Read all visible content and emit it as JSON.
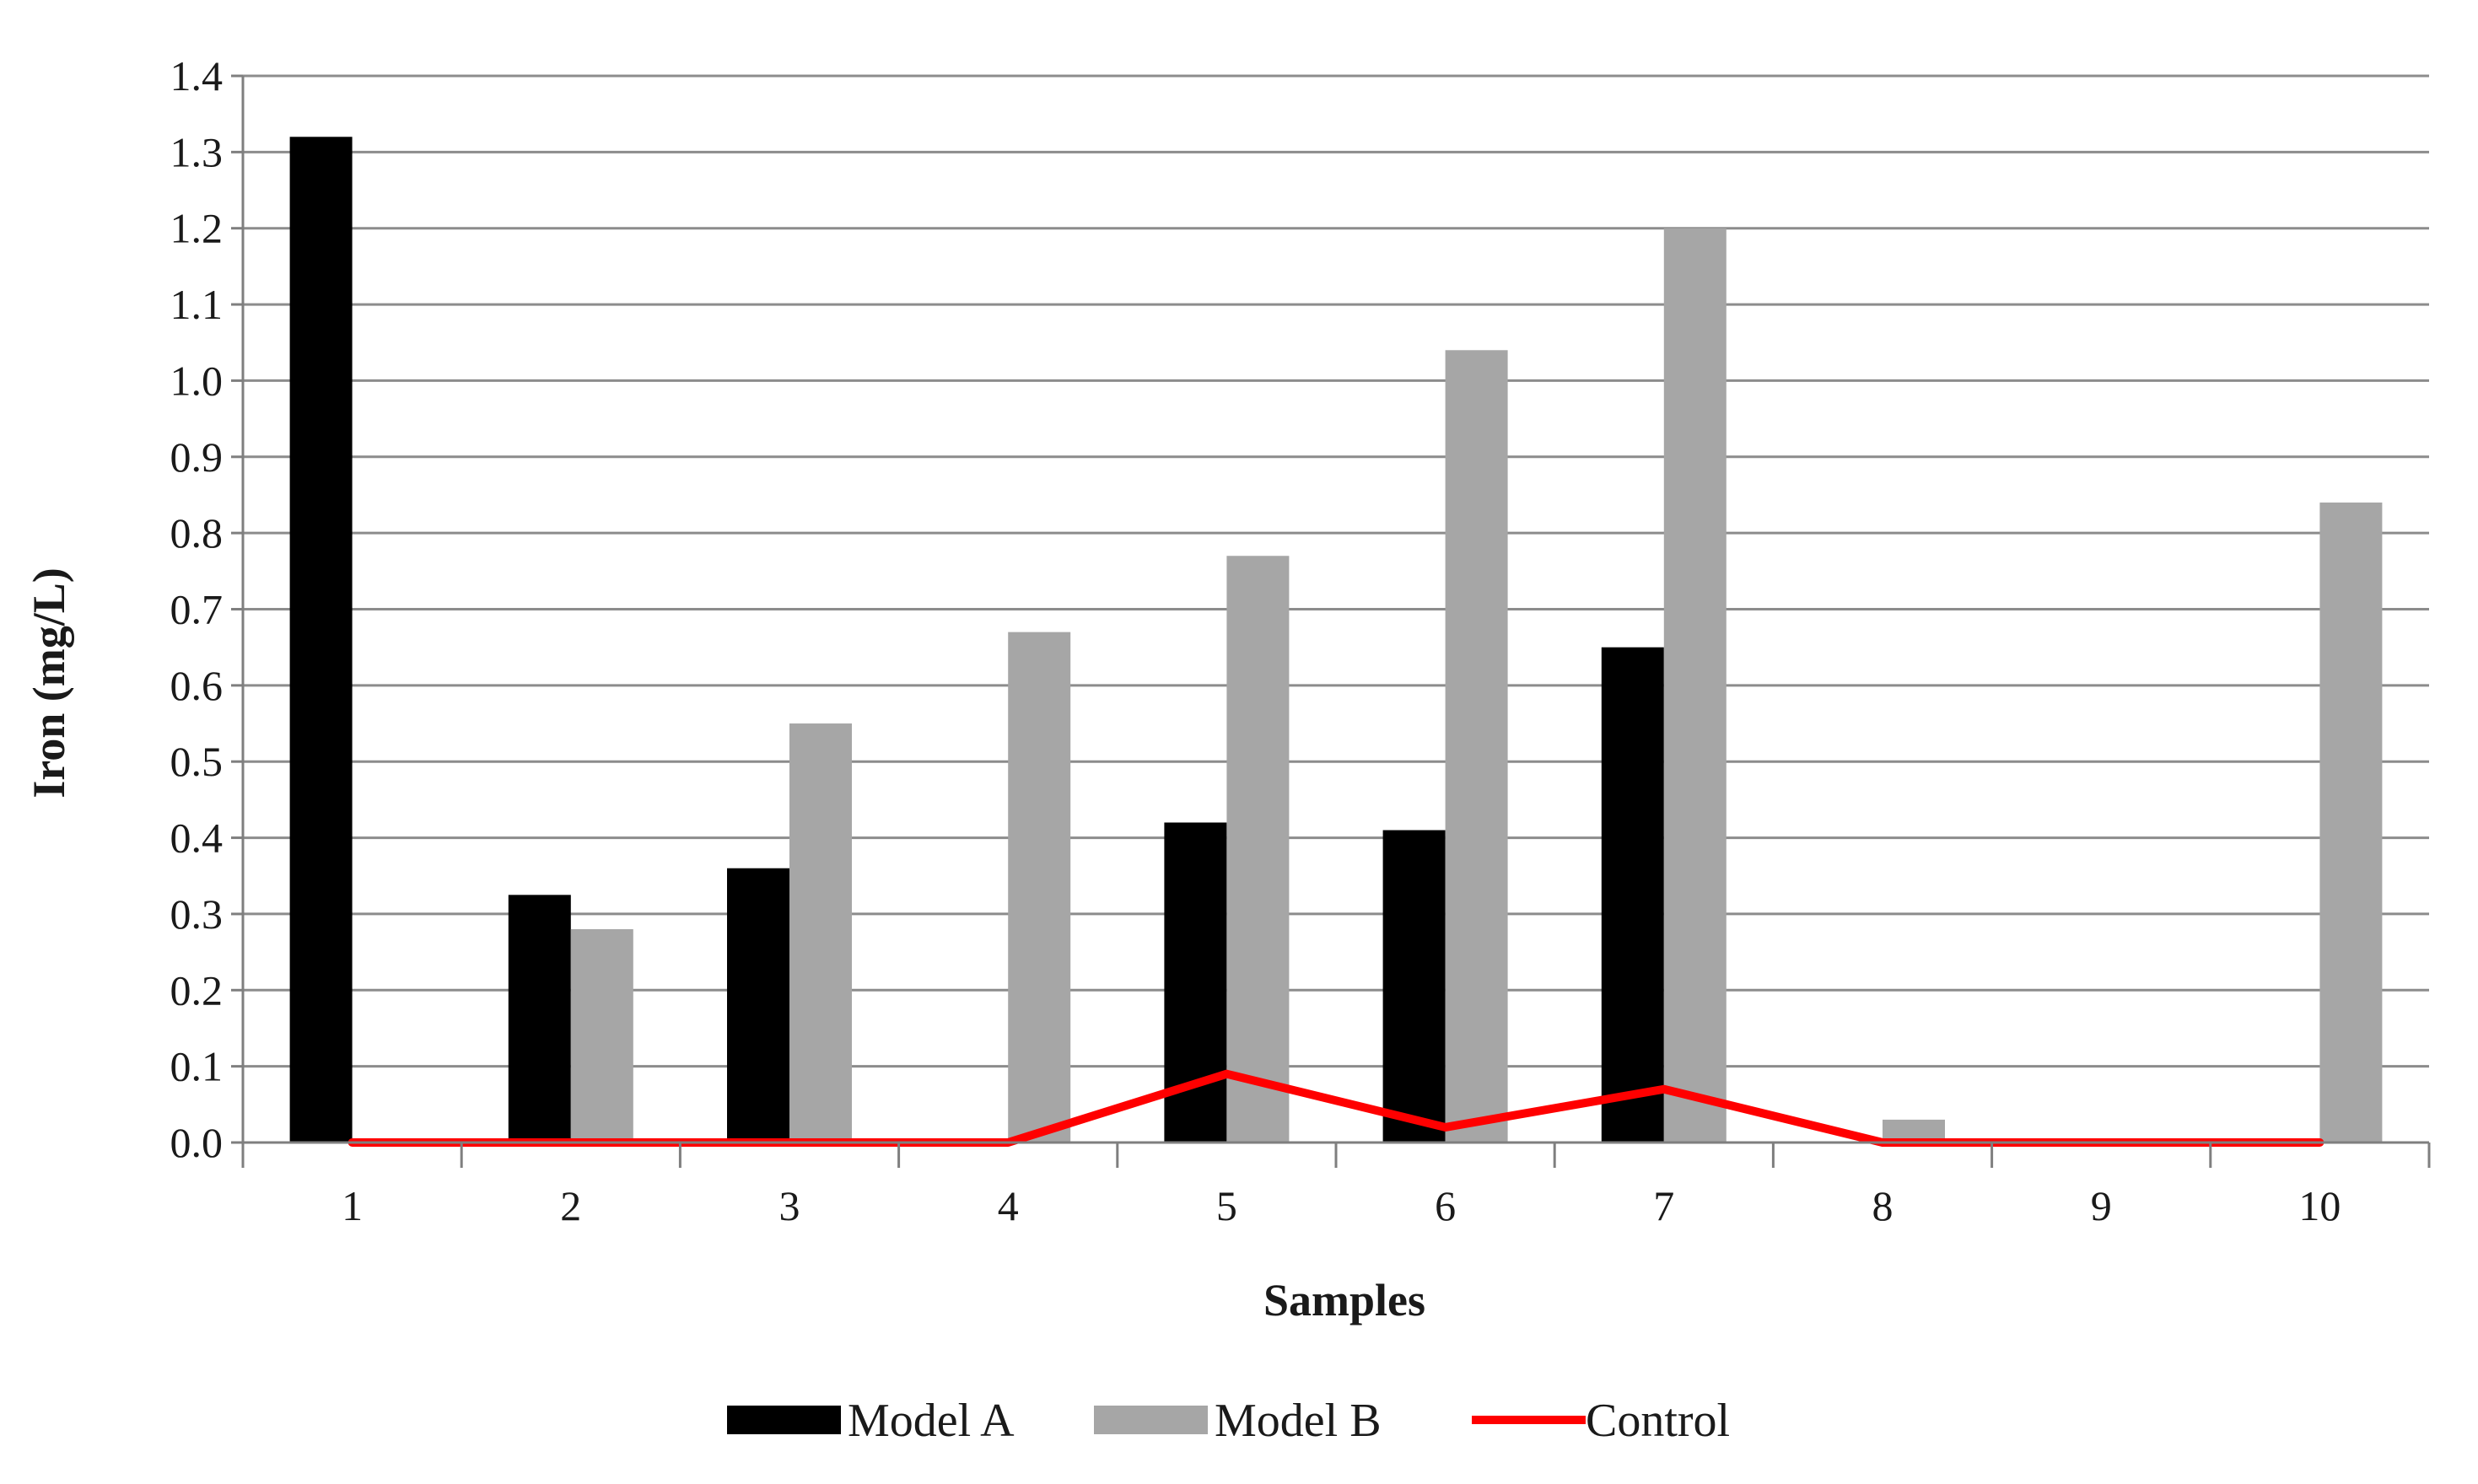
{
  "chart_data": {
    "type": "bar",
    "categories": [
      "1",
      "2",
      "3",
      "4",
      "5",
      "6",
      "7",
      "8",
      "9",
      "10"
    ],
    "series": [
      {
        "name": "Model A",
        "kind": "bar",
        "color": "#000000",
        "values": [
          1.32,
          0.325,
          0.36,
          0,
          0.42,
          0.41,
          0.65,
          0,
          0,
          0
        ]
      },
      {
        "name": "Model B",
        "kind": "bar",
        "color": "#a6a6a6",
        "values": [
          0,
          0.28,
          0.55,
          0.67,
          0.77,
          1.04,
          1.2,
          0.03,
          0,
          0.84
        ]
      },
      {
        "name": "Control",
        "kind": "line",
        "color": "#ff0000",
        "values": [
          0,
          0,
          0,
          0,
          0.09,
          0.02,
          0.07,
          0,
          0,
          0
        ]
      }
    ],
    "title": "",
    "xlabel": "Samples",
    "ylabel": "Iron  (mg/L)",
    "ylim": [
      0,
      1.4
    ],
    "yticks": [
      "0.0",
      "0.1",
      "0.2",
      "0.3",
      "0.4",
      "0.5",
      "0.6",
      "0.7",
      "0.8",
      "0.9",
      "1.0",
      "1.1",
      "1.2",
      "1.3",
      "1.4"
    ],
    "grid": true,
    "legend_position": "bottom"
  }
}
